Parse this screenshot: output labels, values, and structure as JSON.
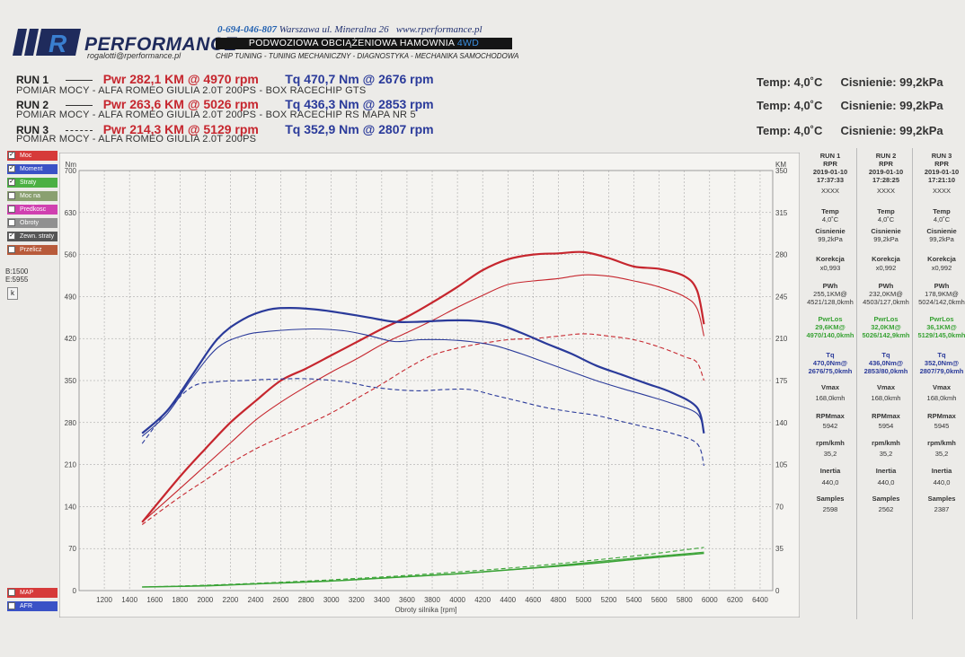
{
  "header": {
    "logo_letter": "R",
    "logo_name": "PERFORMANCE",
    "email": "rogalotti@rperformance.pl",
    "phone": "0-694-046-807",
    "address": "Warszawa ul. Mineralna 26",
    "website": "www.rperformance.pl",
    "band_text": "PODWOZIOWA OBCIĄŻENIOWA HAMOWNIA",
    "band_accent": "4WD",
    "services": "CHIP TUNING - TUNING MECHANICZNY - DIAGNOSTYKA - MECHANIKA SAMOCHODOWA"
  },
  "runs": [
    {
      "label": "RUN 1",
      "pwr": "Pwr 282,1 KM @ 4970 rpm",
      "tq": "Tq 470,7 Nm @ 2676 rpm",
      "desc": "POMIAR MOCY - ALFA ROMEO GIULIA 2.0T 200PS - BOX RACECHIP GTS",
      "temp": "Temp: 4,0˚C",
      "cisn": "Cisnienie: 99,2kPa"
    },
    {
      "label": "RUN 2",
      "pwr": "Pwr 263,6 KM @ 5026 rpm",
      "tq": "Tq 436,3 Nm @ 2853 rpm",
      "desc": "POMIAR MOCY - ALFA ROMEO GIULIA 2.0T 200PS - BOX RACECHIP RS MAPA NR 5",
      "temp": "Temp: 4,0˚C",
      "cisn": "Cisnienie: 99,2kPa"
    },
    {
      "label": "RUN 3",
      "pwr": "Pwr 214,3 KM @ 5129 rpm",
      "tq": "Tq 352,9 Nm @ 2807 rpm",
      "desc": "POMIAR MOCY - ALFA ROMEO GIULIA 2.0T 200PS",
      "temp": "Temp: 4,0˚C",
      "cisn": "Cisnienie: 99,2kPa"
    }
  ],
  "legend": {
    "items": [
      {
        "label": "Moc",
        "color": "#d63a3a",
        "checked": "✓"
      },
      {
        "label": "Moment",
        "color": "#3a52c6",
        "checked": "✓"
      },
      {
        "label": "Straty",
        "color": "#4bb043",
        "checked": "✓"
      },
      {
        "label": "Moc na kolach",
        "color": "#8aa070",
        "checked": ""
      },
      {
        "label": "Predkosc",
        "color": "#d040b0",
        "checked": ""
      },
      {
        "label": "Obroty",
        "color": "#909090",
        "checked": ""
      },
      {
        "label": "Zewn. straty",
        "color": "#555555",
        "checked": "✓"
      },
      {
        "label": "Przelicz",
        "color": "#b85a3a",
        "checked": ""
      }
    ],
    "bottom_items": [
      {
        "label": "MAP",
        "color": "#d63a3a"
      },
      {
        "label": "AFR",
        "color": "#3a52c6"
      }
    ],
    "b_value": "B:1500",
    "e_value": "E:5955",
    "k_label": "k"
  },
  "table": {
    "columns": [
      {
        "run": "RUN 1",
        "rpr": "RPR",
        "date": "2019-01-10",
        "time": "17:37:33",
        "code": "XXXX",
        "temp": "4,0˚C",
        "cisn": "99,2kPa",
        "korekcja": "x0,993",
        "pwh1": "255,1KM@",
        "pwh2": "4521/128,0kmh",
        "pwrlos1": "29,6KM@",
        "pwrlos2": "4970/140,0kmh",
        "tq1": "470,0Nm@",
        "tq2": "2676/75,0kmh",
        "vmax": "168,0kmh",
        "rpmmax": "5942",
        "rpmkmh": "35,2",
        "inertia": "440,0",
        "samples": "2598"
      },
      {
        "run": "RUN 2",
        "rpr": "RPR",
        "date": "2019-01-10",
        "time": "17:28:25",
        "code": "XXXX",
        "temp": "4,0˚C",
        "cisn": "99,2kPa",
        "korekcja": "x0,992",
        "pwh1": "232,0KM@",
        "pwh2": "4503/127,0kmh",
        "pwrlos1": "32,0KM@",
        "pwrlos2": "5026/142,9kmh",
        "tq1": "436,0Nm@",
        "tq2": "2853/80,0kmh",
        "vmax": "168,0kmh",
        "rpmmax": "5954",
        "rpmkmh": "35,2",
        "inertia": "440,0",
        "samples": "2562"
      },
      {
        "run": "RUN 3",
        "rpr": "RPR",
        "date": "2019-01-10",
        "time": "17:21:10",
        "code": "XXXX",
        "temp": "4,0˚C",
        "cisn": "99,2kPa",
        "korekcja": "x0,992",
        "pwh1": "178,9KM@",
        "pwh2": "5024/142,0kmh",
        "pwrlos1": "36,1KM@",
        "pwrlos2": "5129/145,0kmh",
        "tq1": "352,0Nm@",
        "tq2": "2807/79,0kmh",
        "vmax": "168,0kmh",
        "rpmmax": "5945",
        "rpmkmh": "35,2",
        "inertia": "440,0",
        "samples": "2387"
      }
    ],
    "labels": {
      "temp": "Temp",
      "cisn": "Cisnienie",
      "korekcja": "Korekcja",
      "pwh": "PWh",
      "pwrlos": "PwrLos",
      "tq": "Tq",
      "vmax": "Vmax",
      "rpmmax": "RPMmax",
      "rpmkmh": "rpm/kmh",
      "inertia": "Inertia",
      "samples": "Samples"
    }
  },
  "chart_data": {
    "type": "line",
    "xlabel": "Obroty silnika [rpm]",
    "left_unit": "Nm",
    "right_unit": "KM",
    "xlim": [
      1000,
      6500
    ],
    "ylim_left": [
      0,
      700
    ],
    "ylim_right": [
      0,
      350
    ],
    "x_ticks": [
      1200,
      1400,
      1600,
      1800,
      2000,
      2200,
      2400,
      2600,
      2800,
      3000,
      3200,
      3400,
      3600,
      3800,
      4000,
      4200,
      4400,
      4600,
      4800,
      5000,
      5200,
      5400,
      5600,
      5800,
      6000,
      6200,
      6400
    ],
    "y_left_ticks": [
      0,
      70,
      140,
      210,
      280,
      350,
      420,
      490,
      560,
      630,
      700
    ],
    "y_right_ticks": [
      0,
      35,
      70,
      105,
      140,
      175,
      210,
      245,
      280,
      315,
      350
    ],
    "grid": true,
    "colors": {
      "power": "#c6262e",
      "torque": "#2a3a9a",
      "loss": "#3aa336"
    },
    "series": [
      {
        "name": "RUN 1",
        "kind": "power",
        "style": "solid",
        "width": 2.2,
        "axis": "right",
        "x": [
          1500,
          1800,
          2000,
          2200,
          2400,
          2600,
          2800,
          3000,
          3200,
          3400,
          3600,
          3800,
          4000,
          4200,
          4400,
          4600,
          4800,
          5000,
          5200,
          5400,
          5600,
          5800,
          5900,
          5955
        ],
        "y": [
          57,
          95,
          118,
          140,
          158,
          175,
          185,
          196,
          207,
          218,
          228,
          240,
          253,
          267,
          276,
          280,
          281,
          282,
          277,
          270,
          268,
          262,
          250,
          222
        ]
      },
      {
        "name": "RUN 2",
        "kind": "power",
        "style": "thin",
        "width": 1.1,
        "axis": "right",
        "x": [
          1500,
          1800,
          2000,
          2200,
          2400,
          2600,
          2800,
          3000,
          3200,
          3400,
          3600,
          3800,
          4000,
          4200,
          4400,
          4600,
          4800,
          5000,
          5200,
          5400,
          5600,
          5800,
          5900,
          5955
        ],
        "y": [
          57,
          85,
          104,
          123,
          142,
          157,
          170,
          182,
          193,
          205,
          215,
          225,
          236,
          246,
          255,
          258,
          260,
          263,
          262,
          258,
          253,
          245,
          235,
          212
        ]
      },
      {
        "name": "RUN 3",
        "kind": "power",
        "style": "dashed",
        "width": 1.1,
        "axis": "right",
        "x": [
          1500,
          1800,
          2000,
          2200,
          2400,
          2600,
          2800,
          3000,
          3200,
          3400,
          3600,
          3800,
          4000,
          4200,
          4400,
          4600,
          4800,
          5000,
          5200,
          5400,
          5600,
          5800,
          5900,
          5955
        ],
        "y": [
          55,
          78,
          92,
          106,
          118,
          128,
          138,
          148,
          160,
          172,
          185,
          196,
          202,
          206,
          209,
          210,
          212,
          214,
          212,
          209,
          203,
          195,
          190,
          175
        ]
      },
      {
        "name": "RUN 1",
        "kind": "torque",
        "style": "solid",
        "width": 2.2,
        "axis": "left",
        "x": [
          1500,
          1700,
          1900,
          2100,
          2300,
          2500,
          2676,
          2900,
          3100,
          3300,
          3500,
          3700,
          3900,
          4100,
          4300,
          4500,
          4700,
          4900,
          5100,
          5300,
          5500,
          5700,
          5900,
          5955
        ],
        "y": [
          262,
          300,
          360,
          420,
          452,
          468,
          471,
          468,
          462,
          455,
          448,
          448,
          450,
          450,
          445,
          430,
          412,
          395,
          375,
          360,
          345,
          330,
          305,
          262
        ]
      },
      {
        "name": "RUN 2",
        "kind": "torque",
        "style": "thin",
        "width": 1.1,
        "axis": "left",
        "x": [
          1500,
          1700,
          1900,
          2100,
          2300,
          2500,
          2853,
          3100,
          3300,
          3500,
          3700,
          3900,
          4100,
          4300,
          4500,
          4700,
          4900,
          5100,
          5300,
          5500,
          5700,
          5900,
          5955
        ],
        "y": [
          257,
          295,
          355,
          405,
          425,
          432,
          436,
          433,
          425,
          415,
          418,
          418,
          415,
          408,
          395,
          380,
          365,
          350,
          337,
          325,
          312,
          295,
          265
        ]
      },
      {
        "name": "RUN 3",
        "kind": "torque",
        "style": "dashed",
        "width": 1.1,
        "axis": "left",
        "x": [
          1500,
          1700,
          1900,
          2100,
          2300,
          2500,
          2807,
          3100,
          3300,
          3500,
          3700,
          3900,
          4100,
          4300,
          4500,
          4700,
          4900,
          5100,
          5300,
          5500,
          5700,
          5900,
          5955
        ],
        "y": [
          245,
          300,
          340,
          348,
          350,
          352,
          353,
          348,
          340,
          335,
          333,
          335,
          335,
          325,
          315,
          305,
          298,
          292,
          282,
          272,
          262,
          245,
          208
        ]
      },
      {
        "name": "RUN 1",
        "kind": "loss",
        "style": "solid",
        "width": 1.6,
        "axis": "right",
        "x": [
          1500,
          2000,
          2500,
          3000,
          3500,
          4000,
          4500,
          5000,
          5500,
          5955
        ],
        "y": [
          3,
          4,
          6,
          8,
          11,
          14,
          18,
          22,
          27,
          31
        ]
      },
      {
        "name": "RUN 2",
        "kind": "loss",
        "style": "thin",
        "width": 1.1,
        "axis": "right",
        "x": [
          1500,
          2000,
          2500,
          3000,
          3500,
          4000,
          4500,
          5000,
          5500,
          5955
        ],
        "y": [
          3,
          4,
          6,
          8,
          11,
          14,
          18,
          23,
          28,
          32
        ]
      },
      {
        "name": "RUN 3",
        "kind": "loss",
        "style": "dashed",
        "width": 1.1,
        "axis": "right",
        "x": [
          1500,
          2000,
          2500,
          3000,
          3500,
          4000,
          4500,
          5000,
          5500,
          5955
        ],
        "y": [
          3,
          4.5,
          6.5,
          9,
          12,
          15.5,
          19.5,
          24.5,
          30,
          36
        ]
      }
    ]
  }
}
